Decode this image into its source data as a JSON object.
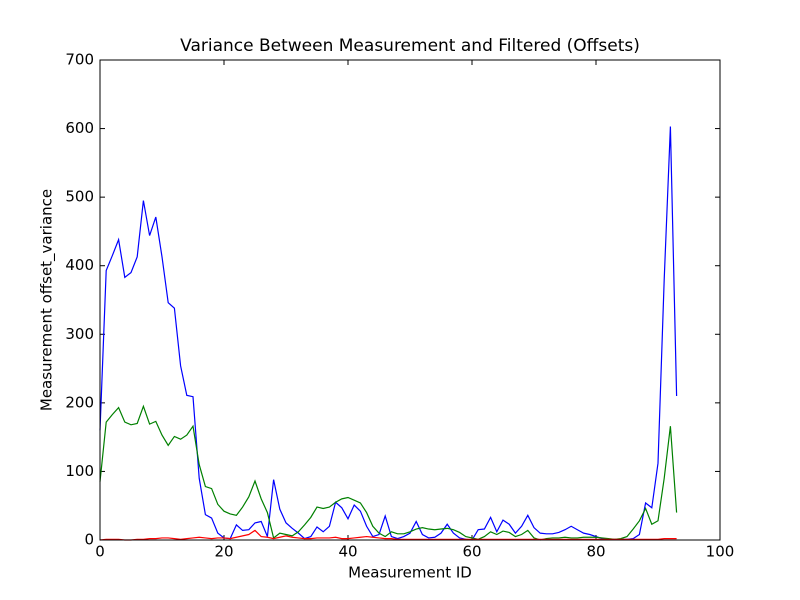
{
  "chart_data": {
    "type": "line",
    "title": "Variance Between Measurement and Filtered (Offsets)",
    "xlabel": "Measurement ID",
    "ylabel": "Measurement offset_variance",
    "x": [
      0,
      1,
      2,
      3,
      4,
      5,
      6,
      7,
      8,
      9,
      10,
      11,
      12,
      13,
      14,
      15,
      16,
      17,
      18,
      19,
      20,
      21,
      22,
      23,
      24,
      25,
      26,
      27,
      28,
      29,
      30,
      31,
      32,
      33,
      34,
      35,
      36,
      37,
      38,
      39,
      40,
      41,
      42,
      43,
      44,
      45,
      46,
      47,
      48,
      49,
      50,
      51,
      52,
      53,
      54,
      55,
      56,
      57,
      58,
      59,
      60,
      61,
      62,
      63,
      64,
      65,
      66,
      67,
      68,
      69,
      70,
      71,
      72,
      73,
      74,
      75,
      76,
      77,
      78,
      79,
      80,
      81,
      82,
      83,
      84,
      85,
      86,
      87,
      88,
      89,
      90,
      91,
      92,
      93
    ],
    "series": [
      {
        "color": "#0000ff",
        "values": [
          160,
          393,
          415,
          438,
          383,
          390,
          413,
          495,
          444,
          471,
          413,
          346,
          338,
          254,
          211,
          209,
          90,
          37,
          32,
          10,
          3,
          2,
          22,
          14,
          15,
          25,
          27,
          5,
          88,
          45,
          25,
          17,
          10,
          2,
          5,
          19,
          12,
          20,
          55,
          47,
          31,
          51,
          42,
          20,
          5,
          8,
          35,
          5,
          2,
          5,
          10,
          27,
          8,
          3,
          4,
          10,
          23,
          10,
          3,
          1,
          0,
          15,
          16,
          33,
          12,
          29,
          23,
          10,
          20,
          36,
          18,
          10,
          9,
          9,
          11,
          15,
          20,
          15,
          10,
          8,
          5,
          2,
          1,
          1,
          1,
          1,
          2,
          8,
          54,
          47,
          112,
          380,
          603,
          210
        ]
      },
      {
        "color": "#008000",
        "values": [
          85,
          172,
          183,
          193,
          172,
          168,
          170,
          195,
          169,
          173,
          153,
          138,
          151,
          147,
          153,
          166,
          110,
          78,
          75,
          52,
          42,
          38,
          36,
          48,
          63,
          86,
          60,
          40,
          3,
          10,
          8,
          6,
          12,
          22,
          33,
          48,
          46,
          48,
          55,
          60,
          62,
          58,
          54,
          40,
          20,
          10,
          5,
          12,
          9,
          9,
          12,
          16,
          18,
          16,
          15,
          16,
          17,
          15,
          11,
          5,
          3,
          1,
          5,
          12,
          8,
          13,
          11,
          5,
          8,
          14,
          3,
          0,
          2,
          3,
          3,
          4,
          3,
          3,
          4,
          4,
          4,
          3,
          2,
          1,
          2,
          5,
          16,
          28,
          46,
          23,
          28,
          90,
          166,
          40
        ]
      },
      {
        "color": "#ff0000",
        "values": [
          0,
          1,
          1,
          1,
          0,
          0,
          1,
          1,
          2,
          2,
          3,
          3,
          2,
          1,
          2,
          3,
          4,
          3,
          2,
          3,
          3,
          2,
          4,
          6,
          8,
          14,
          5,
          4,
          2,
          4,
          6,
          4,
          3,
          2,
          2,
          3,
          3,
          3,
          4,
          2,
          2,
          3,
          4,
          5,
          4,
          3,
          2,
          2,
          1,
          1,
          1,
          1,
          1,
          1,
          1,
          1,
          1,
          1,
          1,
          1,
          1,
          1,
          1,
          1,
          1,
          1,
          1,
          1,
          1,
          1,
          1,
          1,
          1,
          1,
          1,
          1,
          1,
          1,
          1,
          1,
          1,
          1,
          1,
          1,
          1,
          1,
          1,
          1,
          1,
          1,
          1,
          2,
          2,
          2
        ]
      }
    ],
    "xlim": [
      0,
      100
    ],
    "xticks": [
      0,
      20,
      40,
      60,
      80,
      100
    ],
    "ylim": [
      0,
      700
    ],
    "yticks": [
      0,
      100,
      200,
      300,
      400,
      500,
      600,
      700
    ],
    "grid": false
  }
}
